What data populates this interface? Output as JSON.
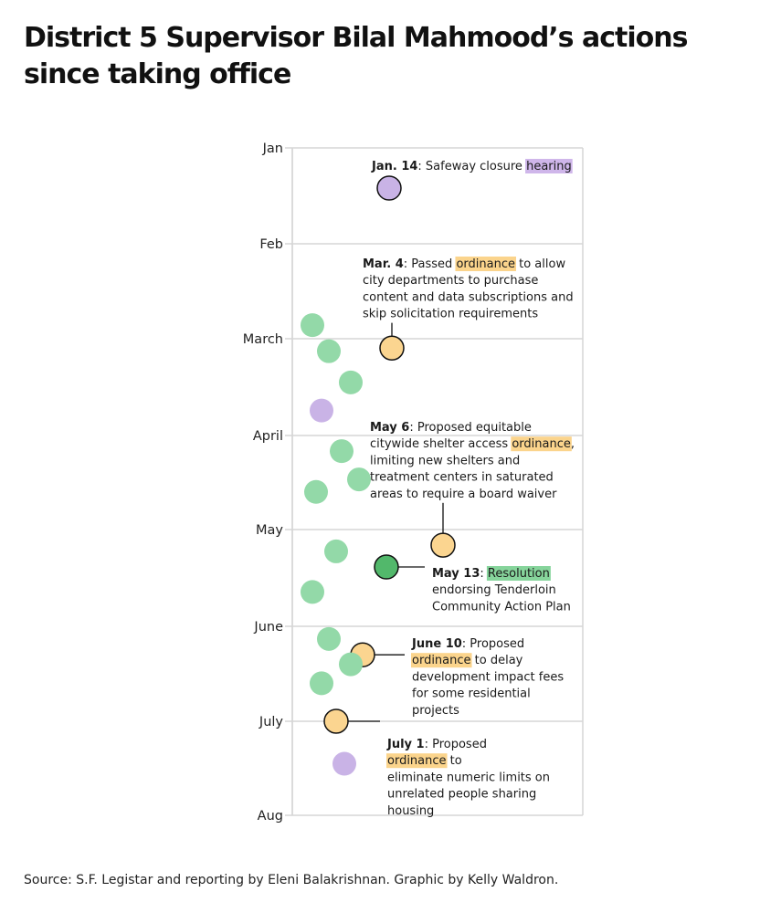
{
  "title": "District 5 Supervisor Bilal Mahmood’s actions since taking office",
  "source": "Source: S.F. Legistar and reporting by Eleni Balakrishnan. Graphic by Kelly Waldron.",
  "colors": {
    "purple": "#c9b3e6",
    "green_light": "#93d9a8",
    "green_dark": "#52b86b",
    "yellow": "#fbd590",
    "highlight_purple": "#cfb6ea",
    "highlight_yellow": "#fbd48c",
    "highlight_green": "#86d49b"
  },
  "chart_data": {
    "type": "scatter",
    "y_axis": {
      "labels": [
        "Jan",
        "Feb",
        "March",
        "April",
        "May",
        "June",
        "July",
        "Aug"
      ],
      "range": [
        "Jan 1",
        "Aug 1"
      ],
      "grid": true
    },
    "actions": [
      {
        "date": "Jan. 14",
        "month": 1,
        "day": 14,
        "type": "hearing",
        "color": "purple",
        "lane": 1,
        "annotated": true
      },
      {
        "date": "Feb 25",
        "month": 2,
        "day": 25,
        "type": "resolution",
        "color": "green_light",
        "lane": 0
      },
      {
        "date": "Mar. 4",
        "month": 3,
        "day": 4,
        "type": "ordinance",
        "color": "yellow",
        "lane": 1,
        "annotated": true
      },
      {
        "date": "Mar 5",
        "month": 3,
        "day": 5,
        "type": "resolution",
        "color": "green_light",
        "lane": 0
      },
      {
        "date": "Mar 15",
        "month": 3,
        "day": 15,
        "type": "resolution",
        "color": "green_light",
        "lane": 0
      },
      {
        "date": "Mar 24",
        "month": 3,
        "day": 24,
        "type": "hearing",
        "color": "purple",
        "lane": 0
      },
      {
        "date": "Apr 6",
        "month": 4,
        "day": 6,
        "type": "resolution",
        "color": "green_light",
        "lane": 0
      },
      {
        "date": "Apr 15",
        "month": 4,
        "day": 15,
        "type": "resolution",
        "color": "green_light",
        "lane": 0
      },
      {
        "date": "Apr 19",
        "month": 4,
        "day": 19,
        "type": "resolution",
        "color": "green_light",
        "lane": 0
      },
      {
        "date": "May 6",
        "month": 5,
        "day": 6,
        "type": "ordinance",
        "color": "yellow",
        "lane": 2,
        "annotated": true
      },
      {
        "date": "May 8",
        "month": 5,
        "day": 8,
        "type": "resolution",
        "color": "green_light",
        "lane": 0
      },
      {
        "date": "May 13",
        "month": 5,
        "day": 13,
        "type": "resolution",
        "color": "green_dark",
        "lane": 1,
        "annotated": true
      },
      {
        "date": "May 21",
        "month": 5,
        "day": 21,
        "type": "resolution",
        "color": "green_light",
        "lane": 0
      },
      {
        "date": "June 5",
        "month": 6,
        "day": 5,
        "type": "resolution",
        "color": "green_light",
        "lane": 0
      },
      {
        "date": "June 10",
        "month": 6,
        "day": 10,
        "type": "ordinance",
        "color": "yellow",
        "lane": 1,
        "annotated": true
      },
      {
        "date": "June 13",
        "month": 6,
        "day": 13,
        "type": "resolution",
        "color": "green_light",
        "lane": 0
      },
      {
        "date": "June 19",
        "month": 6,
        "day": 19,
        "type": "resolution",
        "color": "green_light",
        "lane": 0
      },
      {
        "date": "July 1",
        "month": 7,
        "day": 1,
        "type": "ordinance",
        "color": "yellow",
        "lane": 0,
        "annotated": true
      },
      {
        "date": "July 15",
        "month": 7,
        "day": 15,
        "type": "hearing",
        "color": "purple",
        "lane": 0
      }
    ],
    "annotations": [
      {
        "action_date": "Jan. 14",
        "lines": [
          [
            {
              "t": "Jan. 14",
              "b": true
            },
            {
              "t": ": Safeway closure "
            },
            {
              "t": "hearing",
              "hl": "highlight_purple"
            }
          ]
        ]
      },
      {
        "action_date": "Mar. 4",
        "lines": [
          [
            {
              "t": "Mar. 4",
              "b": true
            },
            {
              "t": ": Passed "
            },
            {
              "t": "ordinance",
              "hl": "highlight_yellow"
            },
            {
              "t": " to allow"
            }
          ],
          [
            {
              "t": "city departments to purchase"
            }
          ],
          [
            {
              "t": "content and data subscriptions and"
            }
          ],
          [
            {
              "t": "skip solicitation requirements"
            }
          ]
        ]
      },
      {
        "action_date": "May 6",
        "lines": [
          [
            {
              "t": "May 6",
              "b": true
            },
            {
              "t": ": Proposed equitable"
            }
          ],
          [
            {
              "t": "citywide shelter access "
            },
            {
              "t": "ordinance",
              "hl": "highlight_yellow"
            },
            {
              "t": ","
            }
          ],
          [
            {
              "t": "limiting new shelters and"
            }
          ],
          [
            {
              "t": "treatment centers in saturated"
            }
          ],
          [
            {
              "t": "areas to require a board waiver"
            }
          ]
        ]
      },
      {
        "action_date": "May 13",
        "lines": [
          [
            {
              "t": "May 13",
              "b": true
            },
            {
              "t": ": "
            },
            {
              "t": "Resolution",
              "hl": "highlight_green"
            }
          ],
          [
            {
              "t": "endorsing Tenderloin"
            }
          ],
          [
            {
              "t": "Community Action Plan"
            }
          ]
        ]
      },
      {
        "action_date": "June 10",
        "lines": [
          [
            {
              "t": "June 10",
              "b": true
            },
            {
              "t": ": Proposed"
            }
          ],
          [
            {
              "t": "ordinance",
              "hl": "highlight_yellow"
            },
            {
              "t": " to delay"
            }
          ],
          [
            {
              "t": "development impact fees"
            }
          ],
          [
            {
              "t": "for some residential"
            }
          ],
          [
            {
              "t": "projects"
            }
          ]
        ]
      },
      {
        "action_date": "July 1",
        "lines": [
          [
            {
              "t": "July 1",
              "b": true
            },
            {
              "t": ": Proposed"
            }
          ],
          [
            {
              "t": "ordinance",
              "hl": "highlight_yellow"
            },
            {
              "t": " to"
            }
          ],
          [
            {
              "t": "eliminate numeric limits on"
            }
          ],
          [
            {
              "t": "unrelated people sharing"
            }
          ],
          [
            {
              "t": "housing"
            }
          ]
        ]
      }
    ]
  }
}
